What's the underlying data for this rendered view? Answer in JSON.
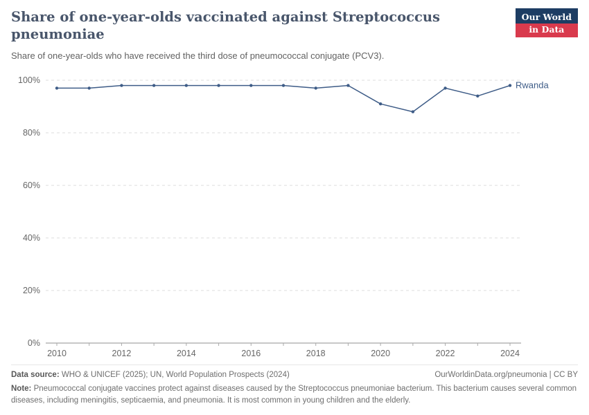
{
  "header": {
    "logo": {
      "line1": "Our World",
      "line2": "in Data"
    }
  },
  "chart_data": {
    "type": "line",
    "title": "Share of one-year-olds vaccinated against Streptococcus pneumoniae",
    "subtitle": "Share of one-year-olds who have received the third dose of pneumococcal conjugate (PCV3).",
    "x": [
      2010,
      2011,
      2012,
      2013,
      2014,
      2015,
      2016,
      2017,
      2018,
      2019,
      2020,
      2021,
      2022,
      2023,
      2024
    ],
    "series": [
      {
        "name": "Rwanda",
        "values": [
          97,
          97,
          98,
          98,
          98,
          98,
          98,
          98,
          97,
          98,
          91,
          88,
          97,
          94,
          98
        ]
      }
    ],
    "ylim": [
      0,
      100
    ],
    "yticks": [
      0,
      20,
      40,
      60,
      80,
      100
    ],
    "xticks": [
      2010,
      2012,
      2014,
      2016,
      2018,
      2020,
      2022,
      2024
    ],
    "ytick_suffix": "%",
    "grid": true,
    "legend": "end-of-line-label",
    "color": "#3e5c87",
    "xlabel": "",
    "ylabel": ""
  },
  "footer": {
    "source_label": "Data source:",
    "source_text": " WHO & UNICEF (2025); UN, World Population Prospects (2024)",
    "link": "OurWorldinData.org/pneumonia | CC BY",
    "note_label": "Note:",
    "note_text": " Pneumococcal conjugate vaccines protect against diseases caused by the Streptococcus pneumoniae bacterium. This bacterium causes several common diseases, including meningitis, septicaemia, and pneumonia. It is most common in young children and the elderly."
  }
}
